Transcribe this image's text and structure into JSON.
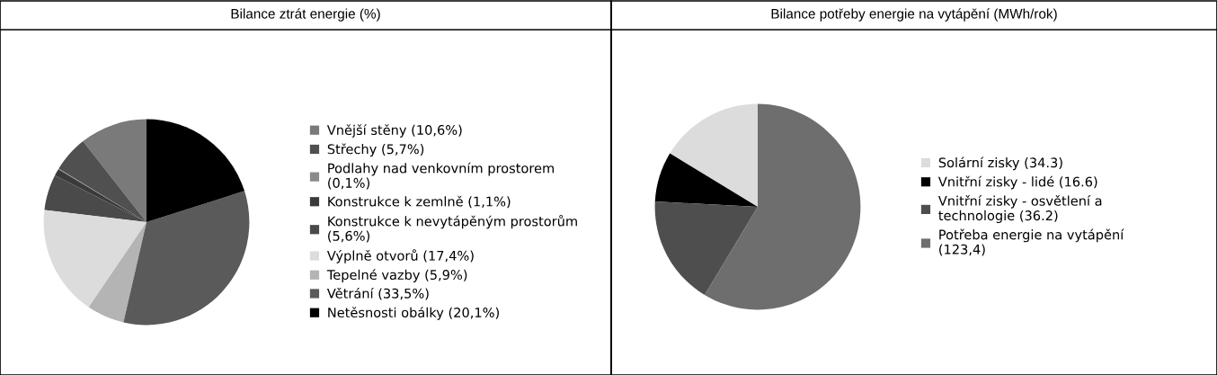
{
  "chart_data": [
    {
      "type": "pie",
      "title": "Bilance ztrát energie (%)",
      "legend": "right",
      "categories": [
        "Vnější stěny (10,6%)",
        "Střechy (5,7%)",
        "Podlahy nad venkovním prostorem\n(0,1%)",
        "Konstrukce k zemlně (1,1%)",
        "Konstrukce k nevytápěným prostorům\n(5,6%)",
        "Výplně otvorů (17,4%)",
        "Tepelné vazby (5,9%)",
        "Větrání (33,5%)",
        "Netěsnosti obálky (20,1%)"
      ],
      "values": [
        10.6,
        5.7,
        0.1,
        1.1,
        5.6,
        17.4,
        5.9,
        33.5,
        20.1
      ],
      "colors": [
        "#7a7a7a",
        "#505050",
        "#8a8a8a",
        "#3a3a3a",
        "#4a4a4a",
        "#dcdcdc",
        "#b4b4b4",
        "#5a5a5a",
        "#000000"
      ]
    },
    {
      "type": "pie",
      "title": "Bilance potřeby energie na vytápění (MWh/rok)",
      "legend": "right",
      "categories": [
        "Solární zisky (34.3)",
        "Vnitřní zisky - lidé (16.6)",
        "Vnitřní zisky - osvětlení a\ntechnologie (36.2)",
        "Potřeba energie na vytápění\n(123,4)"
      ],
      "values": [
        34.3,
        16.6,
        36.2,
        123.4
      ],
      "colors": [
        "#dcdcdc",
        "#000000",
        "#4e4e4e",
        "#6e6e6e"
      ]
    }
  ]
}
